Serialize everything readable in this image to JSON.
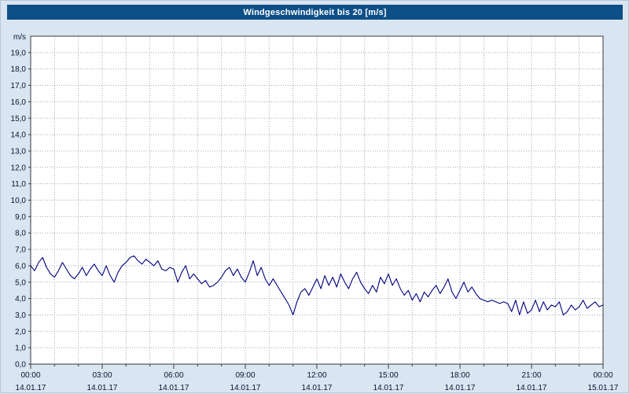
{
  "window": {
    "title": "Windgeschwindigkeit bis 20 [m/s]"
  },
  "chart_data": {
    "type": "line",
    "title": "Windgeschwindigkeit bis 20 [m/s]",
    "xlabel": "",
    "ylabel": "m/s",
    "ylim": [
      0,
      20
    ],
    "ytick_step": 1,
    "ytick_labels": [
      "0,0",
      "1,0",
      "2,0",
      "3,0",
      "4,0",
      "5,0",
      "6,0",
      "7,0",
      "8,0",
      "9,0",
      "10,0",
      "11,0",
      "12,0",
      "13,0",
      "14,0",
      "15,0",
      "16,0",
      "17,0",
      "18,0",
      "19,0"
    ],
    "x_total_minutes": 1440,
    "x_minor_tick_every_hours": 1,
    "grid": true,
    "legend": "none",
    "line_color": "#000080",
    "grid_color": "#9fa9b6",
    "axis_color": "#3a3a3a",
    "label_color": "#0a1230",
    "plot_bg": "#ffffff",
    "xticks": [
      {
        "hour": 0,
        "time": "00:00",
        "date": "14.01.17"
      },
      {
        "hour": 3,
        "time": "03:00",
        "date": "14.01.17"
      },
      {
        "hour": 6,
        "time": "06:00",
        "date": "14.01.17"
      },
      {
        "hour": 9,
        "time": "09:00",
        "date": "14.01.17"
      },
      {
        "hour": 12,
        "time": "12:00",
        "date": "14.01.17"
      },
      {
        "hour": 15,
        "time": "15:00",
        "date": "14.01.17"
      },
      {
        "hour": 18,
        "time": "18:00",
        "date": "14.01.17"
      },
      {
        "hour": 21,
        "time": "21:00",
        "date": "14.01.17"
      },
      {
        "hour": 24,
        "time": "00:00",
        "date": "15.01.17"
      }
    ],
    "series": [
      {
        "name": "Windgeschwindigkeit",
        "interval_minutes": 10,
        "values": [
          6.0,
          5.7,
          6.2,
          6.5,
          5.9,
          5.5,
          5.3,
          5.7,
          6.2,
          5.8,
          5.4,
          5.2,
          5.5,
          5.9,
          5.4,
          5.8,
          6.1,
          5.7,
          5.4,
          6.0,
          5.4,
          5.0,
          5.6,
          6.0,
          6.2,
          6.5,
          6.6,
          6.3,
          6.1,
          6.4,
          6.2,
          6.0,
          6.3,
          5.8,
          5.7,
          5.9,
          5.8,
          5.0,
          5.6,
          6.0,
          5.2,
          5.5,
          5.2,
          4.9,
          5.1,
          4.7,
          4.8,
          5.0,
          5.3,
          5.7,
          5.9,
          5.4,
          5.8,
          5.3,
          5.0,
          5.6,
          6.3,
          5.4,
          5.9,
          5.2,
          4.8,
          5.2,
          4.8,
          4.4,
          4.0,
          3.6,
          3.0,
          3.8,
          4.4,
          4.6,
          4.2,
          4.7,
          5.2,
          4.6,
          5.4,
          4.8,
          5.3,
          4.7,
          5.5,
          5.0,
          4.6,
          5.2,
          5.6,
          5.0,
          4.6,
          4.3,
          4.8,
          4.4,
          5.3,
          4.9,
          5.5,
          4.8,
          5.2,
          4.6,
          4.2,
          4.5,
          3.9,
          4.3,
          3.8,
          4.4,
          4.1,
          4.5,
          4.8,
          4.3,
          4.7,
          5.2,
          4.4,
          4.0,
          4.5,
          5.0,
          4.4,
          4.7,
          4.3,
          4.0,
          3.9,
          3.8,
          3.9,
          3.8,
          3.7,
          3.8,
          3.7,
          3.2,
          3.9,
          3.0,
          3.8,
          3.1,
          3.3,
          3.9,
          3.2,
          3.8,
          3.3,
          3.6,
          3.5,
          3.8,
          3.0,
          3.2,
          3.6,
          3.3,
          3.5,
          3.9,
          3.4,
          3.6,
          3.8,
          3.5,
          3.6
        ]
      }
    ]
  }
}
